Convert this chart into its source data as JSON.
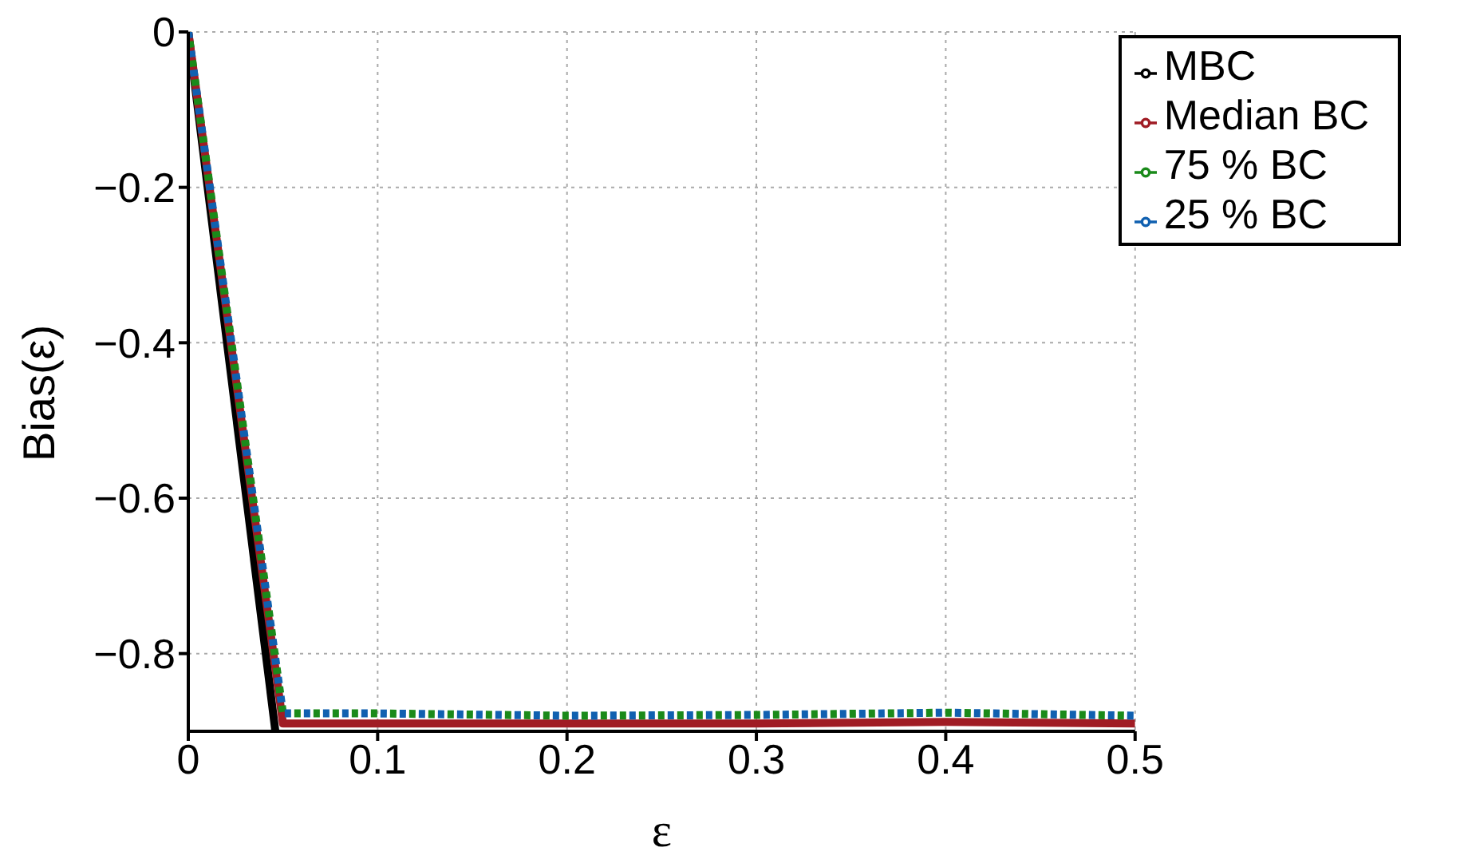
{
  "chart_data": {
    "type": "line",
    "xlabel": "ε",
    "ylabel": "Bias(ε)",
    "xlim": [
      0,
      0.5
    ],
    "xticks": [
      0,
      0.1,
      0.2,
      0.3,
      0.4,
      0.5
    ],
    "ylim": [
      -0.9,
      0
    ],
    "yticks": [
      0,
      -0.2,
      -0.4,
      -0.6,
      -0.8
    ],
    "grid": true,
    "legend": "top right",
    "series": [
      {
        "name": "MBC",
        "color": "#000000",
        "line_style": "solid",
        "x": [
          0,
          0.046
        ],
        "values": [
          0,
          -0.9
        ]
      },
      {
        "name": "Median BC",
        "color": "#a01c24",
        "line_style": "solid",
        "x": [
          0,
          0.05,
          0.1,
          0.2,
          0.3,
          0.4,
          0.5
        ],
        "values": [
          0,
          -0.89,
          -0.89,
          -0.89,
          -0.89,
          -0.888,
          -0.89
        ]
      },
      {
        "name": "75 % BC",
        "color": "#1a8a1a",
        "line_style": "dotted",
        "x": [
          0,
          0.05,
          0.1,
          0.2,
          0.3,
          0.4,
          0.5
        ],
        "values": [
          0,
          -0.877,
          -0.877,
          -0.88,
          -0.879,
          -0.876,
          -0.88
        ]
      },
      {
        "name": "25 % BC",
        "color": "#1060b0",
        "line_style": "dotted",
        "x": [
          0,
          0.05,
          0.1,
          0.2,
          0.3,
          0.4,
          0.5
        ],
        "values": [
          0,
          -0.877,
          -0.877,
          -0.88,
          -0.879,
          -0.876,
          -0.88
        ]
      }
    ]
  }
}
